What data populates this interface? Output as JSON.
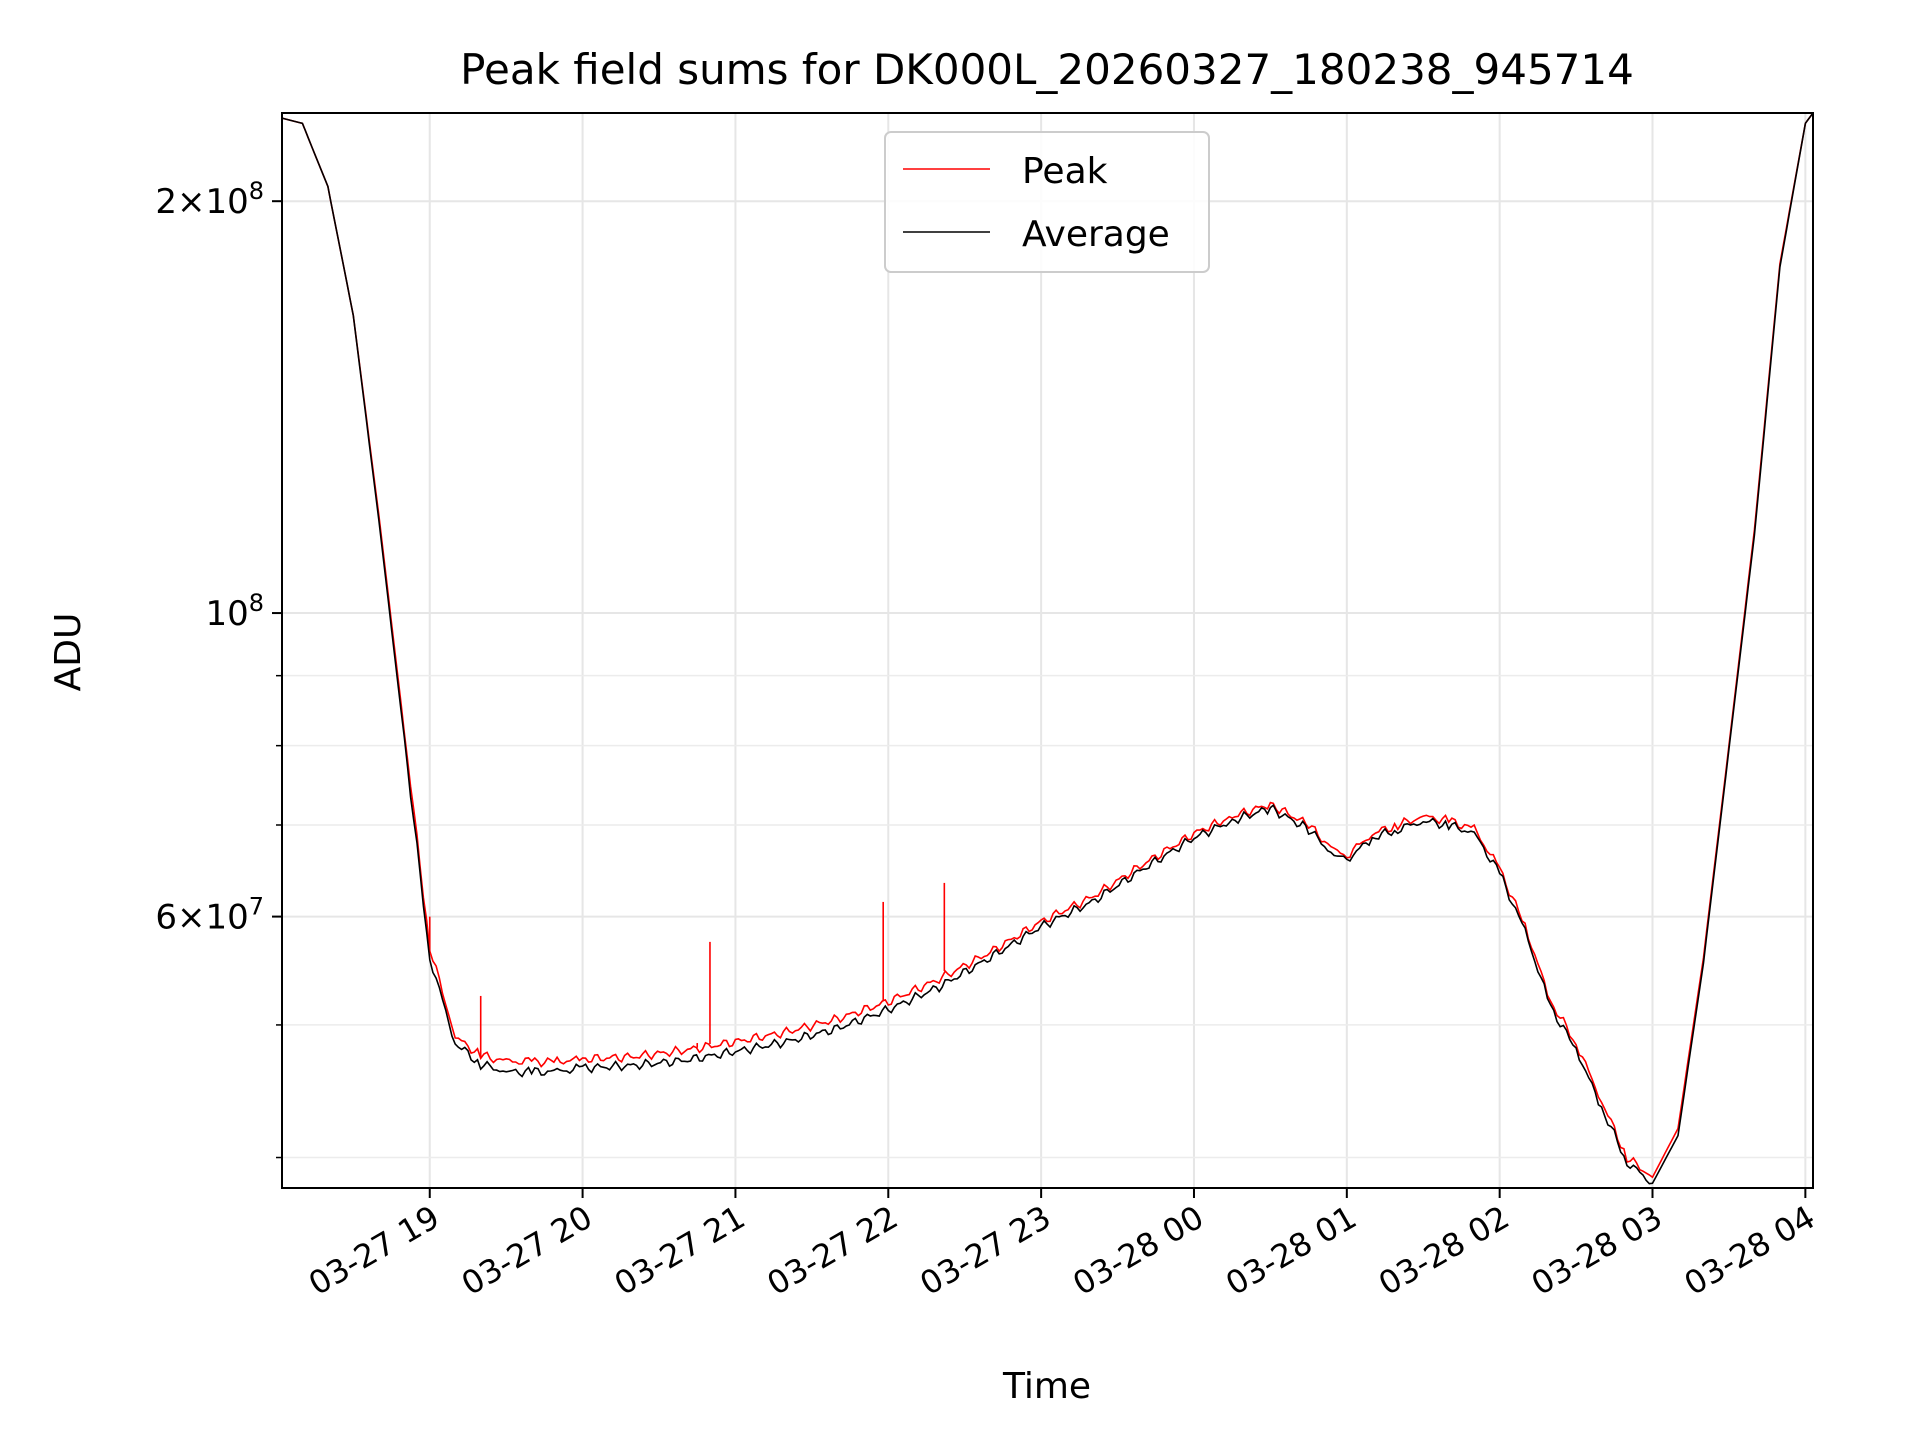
{
  "chart_data": {
    "type": "line",
    "title": "Peak field sums for DK000L_20260327_180238_945714",
    "xlabel": "Time",
    "ylabel": "ADU",
    "yscale": "log",
    "ylim": [
      38000000,
      232000000
    ],
    "xlim": [
      "2026-03-27 18:02",
      "2026-03-28 04:03"
    ],
    "grid": true,
    "legend_position": "top-center",
    "x_ticks": [
      {
        "label": "03-27 19",
        "t": "2026-03-27 19:00"
      },
      {
        "label": "03-27 20",
        "t": "2026-03-27 20:00"
      },
      {
        "label": "03-27 21",
        "t": "2026-03-27 21:00"
      },
      {
        "label": "03-27 22",
        "t": "2026-03-27 22:00"
      },
      {
        "label": "03-27 23",
        "t": "2026-03-27 23:00"
      },
      {
        "label": "03-28 00",
        "t": "2026-03-28 00:00"
      },
      {
        "label": "03-28 01",
        "t": "2026-03-28 01:00"
      },
      {
        "label": "03-28 02",
        "t": "2026-03-28 02:00"
      },
      {
        "label": "03-28 03",
        "t": "2026-03-28 03:00"
      },
      {
        "label": "03-28 04",
        "t": "2026-03-28 04:00"
      }
    ],
    "y_major_ticks": [
      {
        "mantissa": "",
        "base": "10",
        "exp": "8",
        "value": 100000000
      },
      {
        "mantissa": "2",
        "base": "10",
        "exp": "8",
        "value": 200000000
      },
      {
        "mantissa": "6",
        "base": "10",
        "exp": "7",
        "value": 60000000
      }
    ],
    "y_minor_ticks": [
      40000000,
      50000000,
      70000000,
      80000000,
      90000000
    ],
    "series": [
      {
        "name": "Peak",
        "color": "#ff0000",
        "x": [
          "2026-03-27 18:02",
          "2026-03-27 18:10",
          "2026-03-27 18:20",
          "2026-03-27 18:30",
          "2026-03-27 18:40",
          "2026-03-27 18:50",
          "2026-03-27 19:00",
          "2026-03-27 19:10",
          "2026-03-27 19:20",
          "2026-03-27 19:30",
          "2026-03-27 19:40",
          "2026-03-27 19:50",
          "2026-03-27 20:00",
          "2026-03-27 20:20",
          "2026-03-27 20:40",
          "2026-03-27 21:00",
          "2026-03-27 21:20",
          "2026-03-27 21:40",
          "2026-03-27 22:00",
          "2026-03-27 22:20",
          "2026-03-27 22:40",
          "2026-03-27 23:00",
          "2026-03-27 23:20",
          "2026-03-27 23:40",
          "2026-03-28 00:00",
          "2026-03-28 00:15",
          "2026-03-28 00:30",
          "2026-03-28 00:45",
          "2026-03-28 00:55",
          "2026-03-28 01:00",
          "2026-03-28 01:10",
          "2026-03-28 01:20",
          "2026-03-28 01:30",
          "2026-03-28 01:40",
          "2026-03-28 01:50",
          "2026-03-28 02:00",
          "2026-03-28 02:10",
          "2026-03-28 02:20",
          "2026-03-28 02:30",
          "2026-03-28 02:40",
          "2026-03-28 02:50",
          "2026-03-28 03:00",
          "2026-03-28 03:10",
          "2026-03-28 03:20",
          "2026-03-28 03:30",
          "2026-03-28 03:40",
          "2026-03-28 03:50",
          "2026-03-28 04:00",
          "2026-03-28 04:03"
        ],
        "values": [
          230000000,
          228000000,
          205000000,
          165000000,
          118000000,
          82000000,
          57000000,
          49000000,
          47500000,
          47000000,
          47000000,
          47000000,
          47200000,
          47400000,
          47900000,
          48600000,
          49400000,
          50500000,
          52000000,
          54000000,
          56500000,
          59500000,
          62000000,
          65500000,
          69000000,
          71000000,
          72500000,
          70000000,
          67000000,
          66500000,
          69000000,
          70000000,
          71000000,
          70500000,
          69500000,
          65000000,
          59000000,
          52000000,
          48500000,
          44000000,
          40000000,
          38700000,
          42000000,
          56000000,
          80000000,
          115000000,
          180000000,
          228000000,
          232000000
        ],
        "spikes": [
          {
            "t": "2026-03-27 19:00",
            "v": 60000000
          },
          {
            "t": "2026-03-27 19:20",
            "v": 52500000
          },
          {
            "t": "2026-03-27 20:45",
            "v": 48500000
          },
          {
            "t": "2026-03-27 20:50",
            "v": 57500000
          },
          {
            "t": "2026-03-27 21:58",
            "v": 61500000
          },
          {
            "t": "2026-03-27 22:22",
            "v": 63500000
          }
        ]
      },
      {
        "name": "Average",
        "color": "#000000",
        "x": [
          "2026-03-27 18:02",
          "2026-03-27 18:10",
          "2026-03-27 18:20",
          "2026-03-27 18:30",
          "2026-03-27 18:40",
          "2026-03-27 18:50",
          "2026-03-27 19:00",
          "2026-03-27 19:10",
          "2026-03-27 19:20",
          "2026-03-27 19:30",
          "2026-03-27 19:40",
          "2026-03-27 19:50",
          "2026-03-27 20:00",
          "2026-03-27 20:20",
          "2026-03-27 20:40",
          "2026-03-27 21:00",
          "2026-03-27 21:20",
          "2026-03-27 21:40",
          "2026-03-27 22:00",
          "2026-03-27 22:20",
          "2026-03-27 22:40",
          "2026-03-27 23:00",
          "2026-03-27 23:20",
          "2026-03-27 23:40",
          "2026-03-28 00:00",
          "2026-03-28 00:15",
          "2026-03-28 00:30",
          "2026-03-28 00:45",
          "2026-03-28 00:55",
          "2026-03-28 01:00",
          "2026-03-28 01:10",
          "2026-03-28 01:20",
          "2026-03-28 01:30",
          "2026-03-28 01:40",
          "2026-03-28 01:50",
          "2026-03-28 02:00",
          "2026-03-28 02:10",
          "2026-03-28 02:20",
          "2026-03-28 02:30",
          "2026-03-28 02:40",
          "2026-03-28 02:50",
          "2026-03-28 03:00",
          "2026-03-28 03:10",
          "2026-03-28 03:20",
          "2026-03-28 03:30",
          "2026-03-28 03:40",
          "2026-03-28 03:50",
          "2026-03-28 04:00",
          "2026-03-28 04:03"
        ],
        "values": [
          230000000,
          228000000,
          205000000,
          165000000,
          117000000,
          81000000,
          56000000,
          48500000,
          46800000,
          46200000,
          46200000,
          46200000,
          46500000,
          46700000,
          47100000,
          47800000,
          48600000,
          49700000,
          51300000,
          53300000,
          56000000,
          59000000,
          61500000,
          65000000,
          68500000,
          70500000,
          72000000,
          69500000,
          66500000,
          66000000,
          68500000,
          69500000,
          70500000,
          70000000,
          69000000,
          64500000,
          58500000,
          51500000,
          48000000,
          43500000,
          39700000,
          38300000,
          41500000,
          55500000,
          79500000,
          114000000,
          179000000,
          228000000,
          232000000
        ],
        "spikes": []
      }
    ]
  }
}
